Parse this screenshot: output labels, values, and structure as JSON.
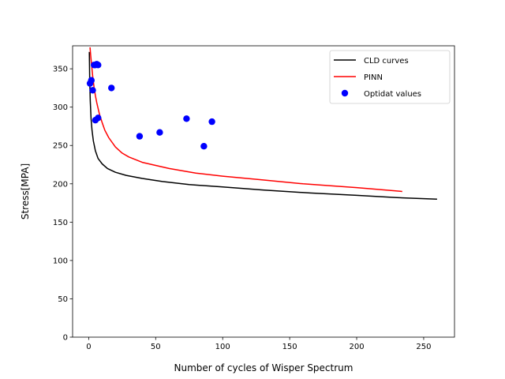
{
  "chart_data": {
    "type": "line",
    "title": "",
    "xlabel": "Number of cycles of Wisper Spectrum",
    "ylabel": "Stress[MPA]",
    "xlim": [
      -12,
      273
    ],
    "ylim": [
      0,
      380
    ],
    "x_ticks": [
      0,
      50,
      100,
      150,
      200,
      250
    ],
    "y_ticks": [
      0,
      50,
      100,
      150,
      200,
      250,
      300,
      350
    ],
    "grid": false,
    "legend_position": "upper right",
    "series": [
      {
        "name": "CLD curves",
        "type": "line",
        "color": "#000000",
        "x": [
          0.5,
          0.8,
          1.2,
          1.8,
          2.5,
          3.5,
          5,
          7,
          10,
          14,
          20,
          28,
          40,
          55,
          75,
          100,
          130,
          165,
          200,
          230,
          260
        ],
        "y": [
          372,
          335,
          308,
          285,
          270,
          256,
          243,
          233,
          226,
          220,
          215,
          211,
          207,
          203,
          199,
          196,
          192,
          188,
          185,
          182,
          180
        ]
      },
      {
        "name": "PINN",
        "type": "line",
        "color": "#ff0000",
        "x": [
          1,
          1.5,
          2,
          3,
          4,
          5,
          6,
          8,
          10,
          12,
          15,
          20,
          25,
          30,
          40,
          50,
          60,
          80,
          100,
          130,
          160,
          200,
          234
        ],
        "y": [
          378,
          368,
          358,
          340,
          326,
          315,
          306,
          291,
          280,
          270,
          260,
          248,
          240,
          235,
          228,
          224,
          220,
          214,
          210,
          205,
          200,
          195,
          190
        ]
      },
      {
        "name": "Optidat values",
        "type": "scatter",
        "color": "#0000ff",
        "x": [
          1,
          2,
          4,
          5,
          6,
          7,
          17,
          38,
          53,
          73,
          86,
          92,
          5,
          7,
          3
        ],
        "y": [
          331,
          335,
          355,
          355,
          356,
          355,
          325,
          262,
          267,
          285,
          249,
          281,
          283,
          286,
          322
        ]
      }
    ]
  }
}
